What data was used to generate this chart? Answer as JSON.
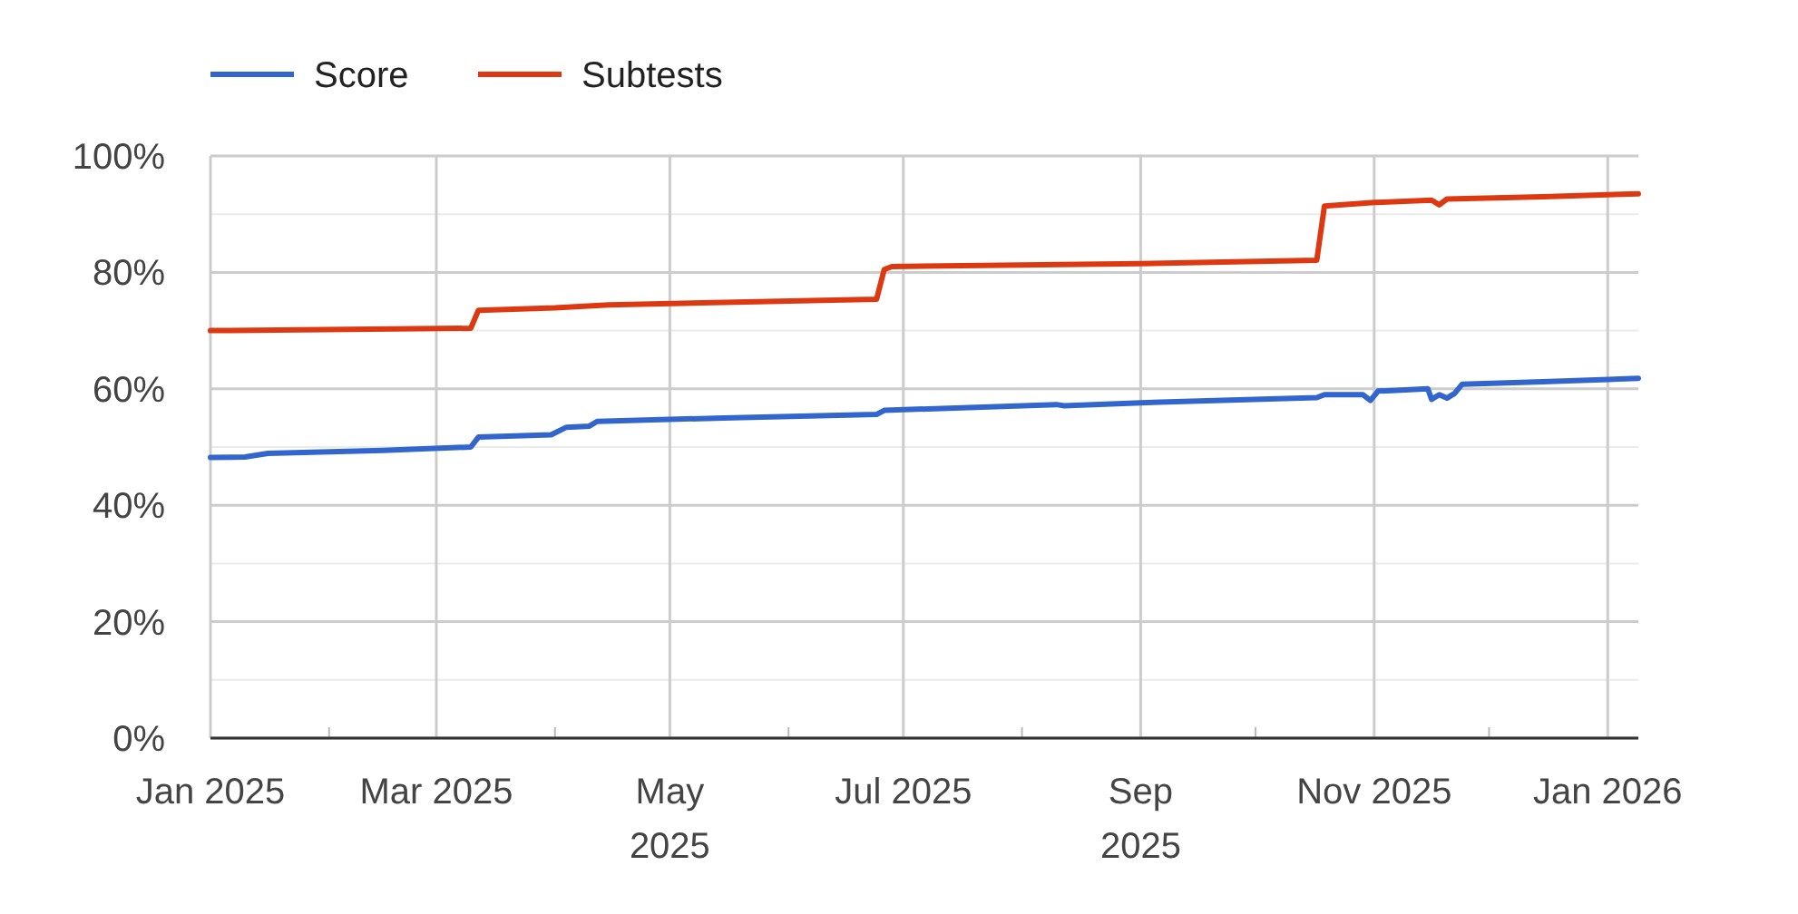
{
  "chart_data": {
    "type": "line",
    "xlim": [
      "2025-01-01",
      "2026-01-09"
    ],
    "ylim": [
      0,
      100
    ],
    "yticks": [
      {
        "value": 0,
        "label": "0%"
      },
      {
        "value": 10,
        "label": null
      },
      {
        "value": 20,
        "label": "20%"
      },
      {
        "value": 30,
        "label": null
      },
      {
        "value": 40,
        "label": "40%"
      },
      {
        "value": 50,
        "label": null
      },
      {
        "value": 60,
        "label": "60%"
      },
      {
        "value": 70,
        "label": null
      },
      {
        "value": 80,
        "label": "80%"
      },
      {
        "value": 90,
        "label": null
      },
      {
        "value": 100,
        "label": "100%"
      }
    ],
    "xticks": [
      {
        "value": "2025-01-01",
        "label": "Jan 2025"
      },
      {
        "value": "2025-02-01",
        "label": null
      },
      {
        "value": "2025-03-01",
        "label": "Mar 2025"
      },
      {
        "value": "2025-04-01",
        "label": null
      },
      {
        "value": "2025-05-01",
        "label": "May 2025"
      },
      {
        "value": "2025-06-01",
        "label": null
      },
      {
        "value": "2025-07-01",
        "label": "Jul 2025"
      },
      {
        "value": "2025-08-01",
        "label": null
      },
      {
        "value": "2025-09-01",
        "label": "Sep 2025"
      },
      {
        "value": "2025-10-01",
        "label": null
      },
      {
        "value": "2025-11-01",
        "label": "Nov 2025"
      },
      {
        "value": "2025-12-01",
        "label": null
      },
      {
        "value": "2026-01-01",
        "label": "Jan 2026"
      }
    ],
    "grid": true,
    "legend": "top left",
    "line_style": "solid",
    "marker": "none",
    "series": [
      {
        "name": "Score",
        "color": "#3366cc",
        "x": [
          "2025-01-01",
          "2025-01-10",
          "2025-01-16",
          "2025-02-15",
          "2025-03-10",
          "2025-03-12",
          "2025-03-31",
          "2025-04-04",
          "2025-04-10",
          "2025-04-12",
          "2025-05-15",
          "2025-06-24",
          "2025-06-26",
          "2025-08-10",
          "2025-08-12",
          "2025-09-01",
          "2025-10-17",
          "2025-10-19",
          "2025-10-29",
          "2025-10-31",
          "2025-11-02",
          "2025-11-15",
          "2025-11-16",
          "2025-11-18",
          "2025-11-20",
          "2025-11-22",
          "2025-11-24",
          "2025-12-15",
          "2026-01-09"
        ],
        "values": [
          48.2,
          48.3,
          48.9,
          49.4,
          50.0,
          51.7,
          52.1,
          53.4,
          53.6,
          54.4,
          55.0,
          55.6,
          56.3,
          57.3,
          57.1,
          57.6,
          58.5,
          59.0,
          59.0,
          58.0,
          59.6,
          60.0,
          58.2,
          59.0,
          58.4,
          59.2,
          60.8,
          61.2,
          61.8
        ]
      },
      {
        "name": "Subtests",
        "color": "#dc3912",
        "x": [
          "2025-01-01",
          "2025-03-10",
          "2025-03-12",
          "2025-04-01",
          "2025-04-15",
          "2025-06-24",
          "2025-06-26",
          "2025-06-28",
          "2025-09-01",
          "2025-10-17",
          "2025-10-19",
          "2025-11-01",
          "2025-11-16",
          "2025-11-18",
          "2025-11-20",
          "2025-12-15",
          "2026-01-09"
        ],
        "values": [
          70.0,
          70.4,
          73.5,
          73.9,
          74.4,
          75.4,
          80.5,
          81.0,
          81.5,
          82.1,
          91.4,
          92.0,
          92.4,
          91.6,
          92.6,
          93.0,
          93.5
        ]
      }
    ]
  }
}
